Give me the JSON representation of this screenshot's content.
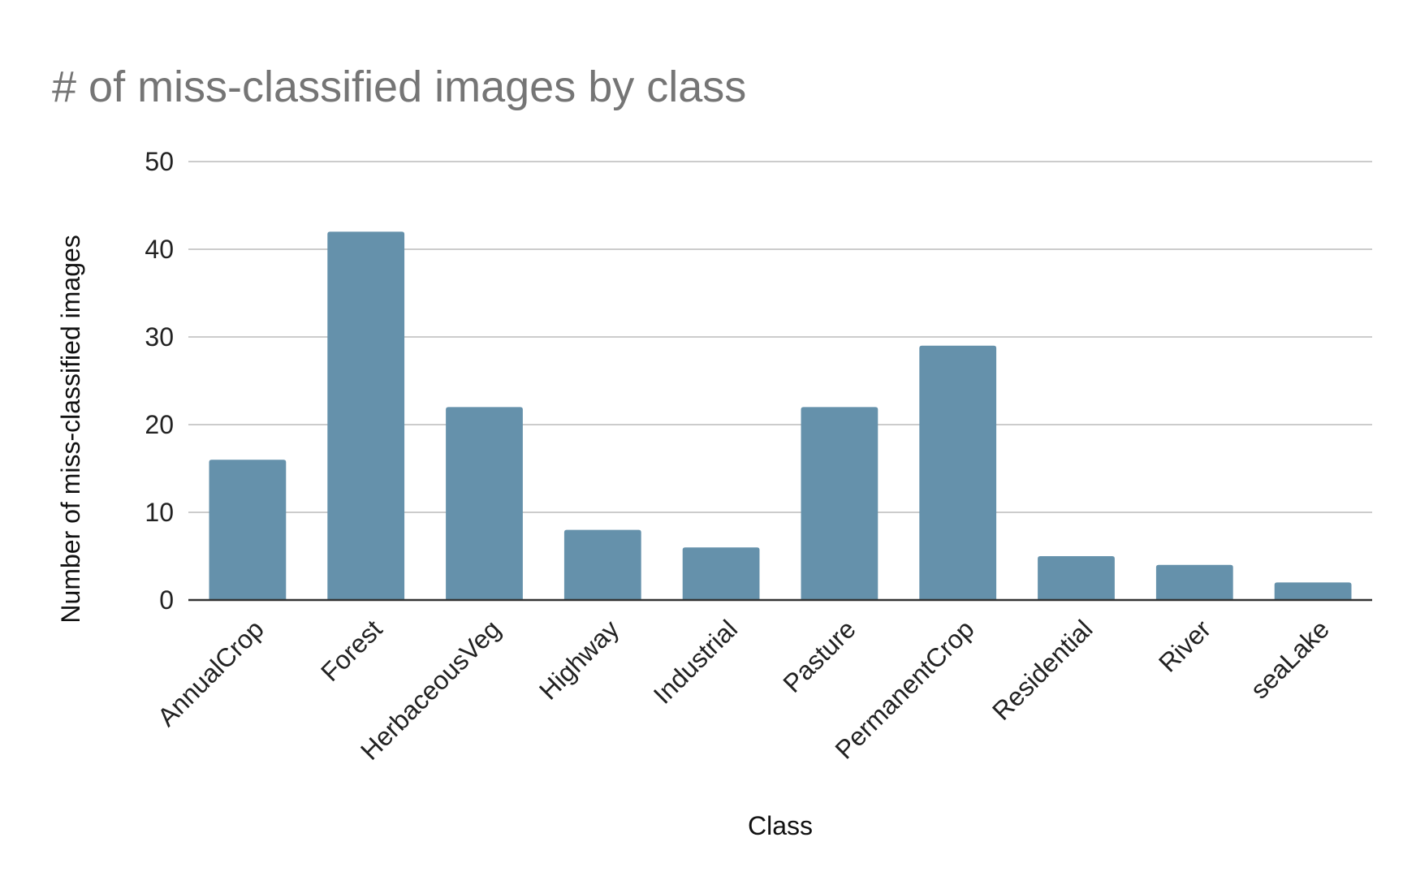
{
  "chart_data": {
    "type": "bar",
    "title": "# of miss-classified images by class",
    "xlabel": "Class",
    "ylabel": "Number of miss-classified images",
    "categories": [
      "AnnualCrop",
      "Forest",
      "HerbaceousVeg",
      "Highway",
      "Industrial",
      "Pasture",
      "PermanentCrop",
      "Residential",
      "River",
      "seaLake"
    ],
    "values": [
      16,
      42,
      22,
      8,
      6,
      22,
      29,
      5,
      4,
      2
    ],
    "ylim": [
      0,
      50
    ],
    "yticks": [
      0,
      10,
      20,
      30,
      40,
      50
    ],
    "grid": true,
    "legend": "none",
    "colors": {
      "bar": "#6591ab",
      "grid": "#cccccc",
      "axis": "#333333",
      "title": "#757575",
      "text": "#222222"
    }
  }
}
